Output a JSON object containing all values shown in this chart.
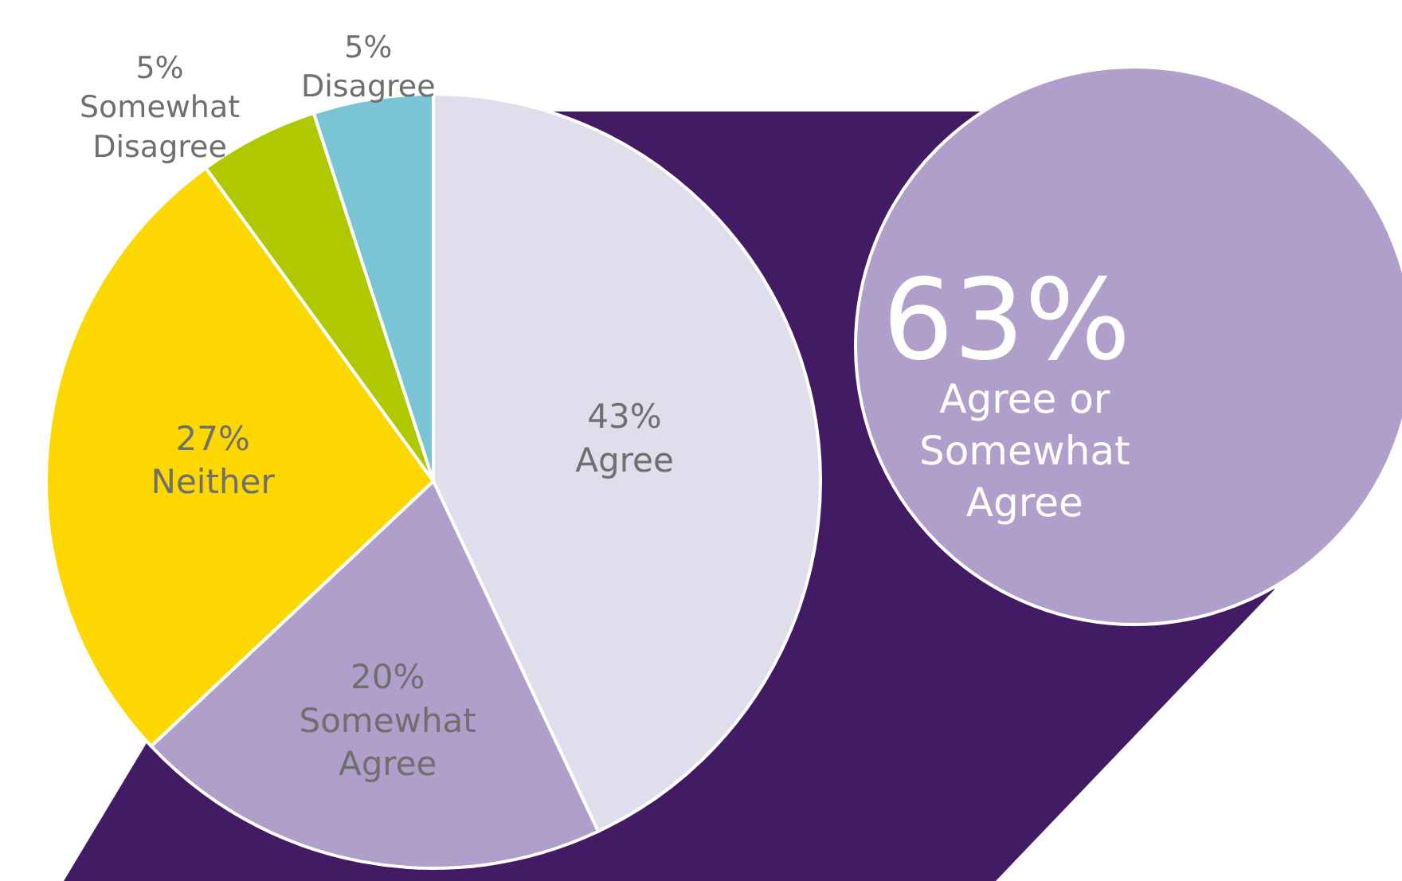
{
  "chart_data": {
    "type": "pie",
    "categories": [
      "Agree",
      "Somewhat Agree",
      "Neither",
      "Somewhat Disagree",
      "Disagree"
    ],
    "values": [
      43,
      20,
      27,
      5,
      5
    ],
    "colors": [
      "#e0deed",
      "#b09fca",
      "#fdd800",
      "#b0c800",
      "#79c5d5"
    ],
    "value_labels": [
      "43%",
      "20%",
      "27%",
      "5%",
      "5%"
    ],
    "legend": false,
    "annotations": [
      "63%",
      "Agree or Somewhat Agree"
    ]
  }
}
